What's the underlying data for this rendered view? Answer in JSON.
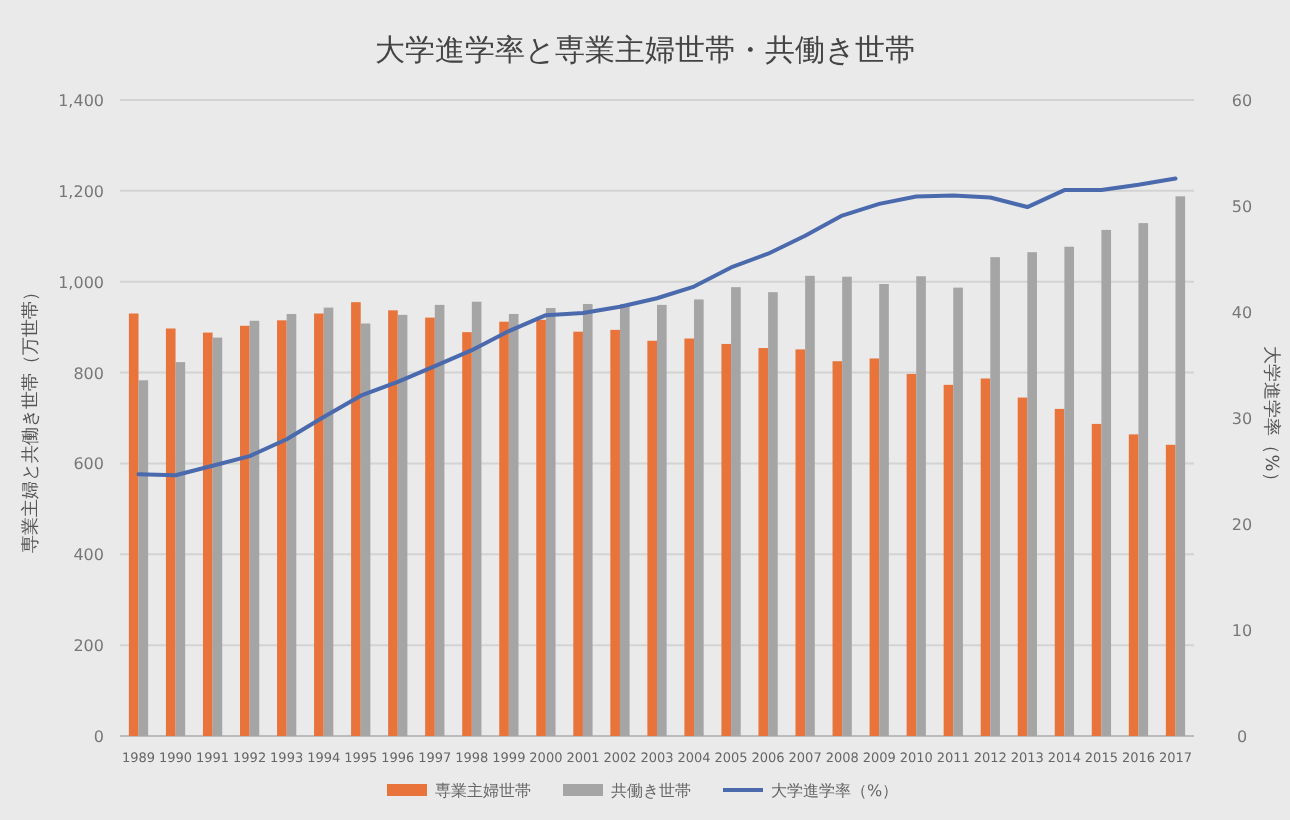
{
  "chart_data": {
    "type": "bar",
    "title": "大学進学率と専業主婦世帯・共働き世帯",
    "ylabel": "専業主婦と共働き世帯（万世帯）",
    "y2label": "大学進学率（%）",
    "categories": [
      "1989",
      "1990",
      "1991",
      "1992",
      "1993",
      "1994",
      "1995",
      "1996",
      "1997",
      "1998",
      "1999",
      "2000",
      "2001",
      "2002",
      "2003",
      "2004",
      "2005",
      "2006",
      "2007",
      "2008",
      "2009",
      "2010",
      "2011",
      "2012",
      "2013",
      "2014",
      "2015",
      "2016",
      "2017"
    ],
    "series": [
      {
        "name": "専業主婦世帯",
        "color": "#e8743b",
        "values": [
          930,
          897,
          888,
          903,
          915,
          930,
          955,
          937,
          921,
          889,
          912,
          916,
          890,
          894,
          870,
          875,
          863,
          854,
          851,
          825,
          831,
          797,
          773,
          787,
          745,
          720,
          687,
          664,
          641
        ]
      },
      {
        "name": "共働き世帯",
        "color": "#a5a5a5",
        "values": [
          783,
          823,
          877,
          914,
          929,
          943,
          908,
          927,
          949,
          956,
          929,
          942,
          951,
          951,
          949,
          961,
          988,
          977,
          1013,
          1011,
          995,
          1012,
          987,
          1054,
          1065,
          1077,
          1114,
          1129,
          1188
        ]
      },
      {
        "name": "大学進学率（%）",
        "type": "line",
        "axis": "y2",
        "color": "#4a6aad",
        "values": [
          24.7,
          24.6,
          25.5,
          26.4,
          28.0,
          30.1,
          32.1,
          33.4,
          34.9,
          36.4,
          38.2,
          39.7,
          39.9,
          40.5,
          41.3,
          42.4,
          44.2,
          45.5,
          47.2,
          49.1,
          50.2,
          50.9,
          51.0,
          50.8,
          49.9,
          51.5,
          51.5,
          52.0,
          52.6
        ]
      }
    ],
    "ylim": [
      0,
      1400
    ],
    "yticks": [
      0,
      {
        "value": 200,
        "label": "200"
      },
      {
        "value": 400,
        "label": "400"
      },
      {
        "value": 600,
        "label": "600"
      },
      {
        "value": 800,
        "label": "800"
      },
      {
        "value": 1000,
        "label": "1,000"
      },
      {
        "value": 1200,
        "label": "1,200"
      },
      {
        "value": 1400,
        "label": "1,400"
      }
    ],
    "y2lim": [
      0,
      60
    ],
    "y2ticks": [
      0,
      10,
      20,
      30,
      40,
      50,
      60
    ],
    "grid": "y",
    "legend": "bottom"
  }
}
